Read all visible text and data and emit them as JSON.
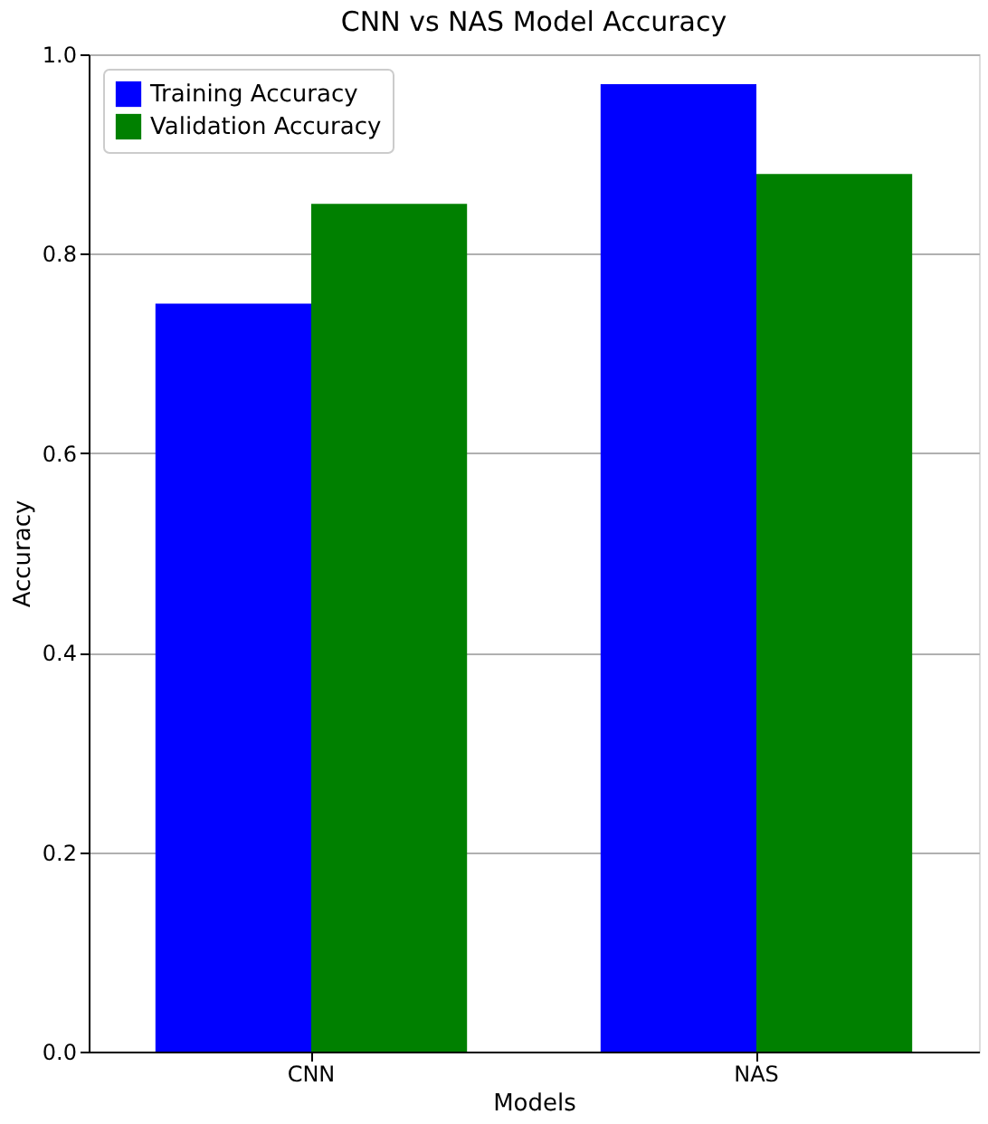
{
  "chart_data": {
    "type": "bar",
    "title": "CNN vs NAS Model Accuracy",
    "xlabel": "Models",
    "ylabel": "Accuracy",
    "categories": [
      "CNN",
      "NAS"
    ],
    "series": [
      {
        "name": "Training Accuracy",
        "color": "#0000ff",
        "values": [
          0.75,
          0.97
        ]
      },
      {
        "name": "Validation Accuracy",
        "color": "#008000",
        "values": [
          0.85,
          0.88
        ]
      }
    ],
    "ylim": [
      0,
      1.0
    ],
    "yticks": [
      {
        "value": 0,
        "label": "0.0"
      },
      {
        "value": 0.2,
        "label": "0.2"
      },
      {
        "value": 0.4,
        "label": "0.4"
      },
      {
        "value": 0.6,
        "label": "0.6"
      },
      {
        "value": 0.8,
        "label": "0.8"
      },
      {
        "value": 1.0,
        "label": "1.0"
      }
    ],
    "grid": "y",
    "legend": "top left"
  }
}
